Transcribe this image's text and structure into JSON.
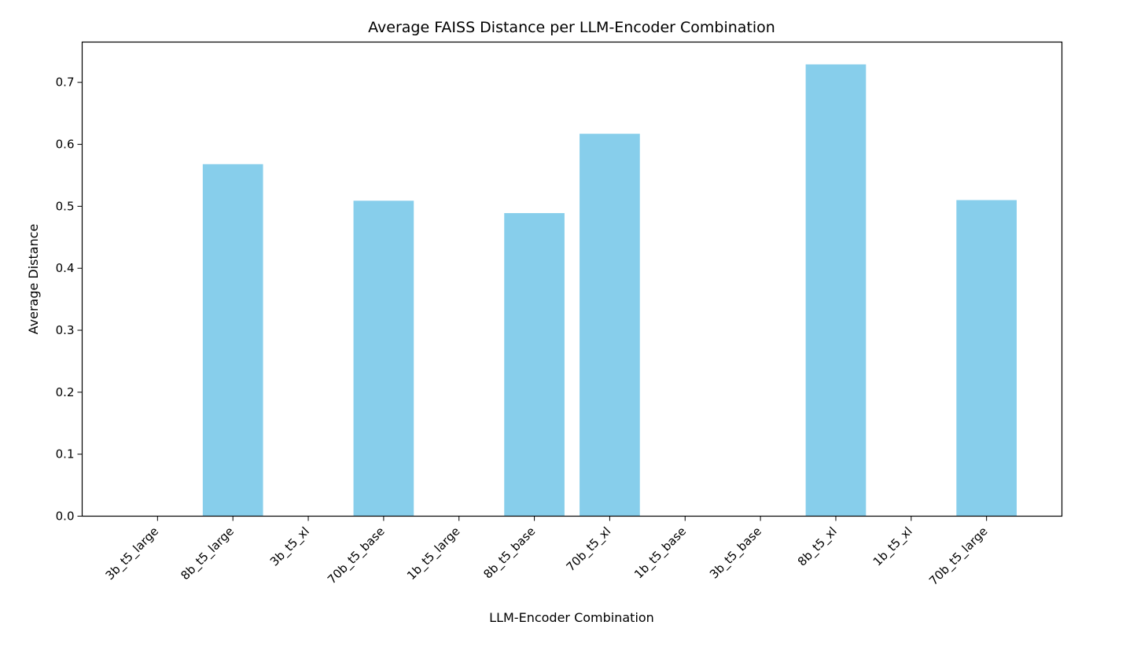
{
  "chart_data": {
    "type": "bar",
    "title": "Average FAISS Distance per LLM-Encoder Combination",
    "xlabel": "LLM-Encoder Combination",
    "ylabel": "Average Distance",
    "categories": [
      "3b_t5_large",
      "8b_t5_large",
      "3b_t5_xl",
      "70b_t5_base",
      "1b_t5_large",
      "8b_t5_base",
      "70b_t5_xl",
      "1b_t5_base",
      "3b_t5_base",
      "8b_t5_xl",
      "1b_t5_xl",
      "70b_t5_large"
    ],
    "values": [
      0,
      0.568,
      0,
      0.509,
      0,
      0.489,
      0.617,
      0,
      0,
      0.729,
      0,
      0.51
    ],
    "ylim": [
      0,
      0.765
    ],
    "yticks": [
      "0.0",
      "0.1",
      "0.2",
      "0.3",
      "0.4",
      "0.5",
      "0.6",
      "0.7"
    ],
    "bar_color": "#87CEEB",
    "grid": false,
    "legend": "none"
  }
}
